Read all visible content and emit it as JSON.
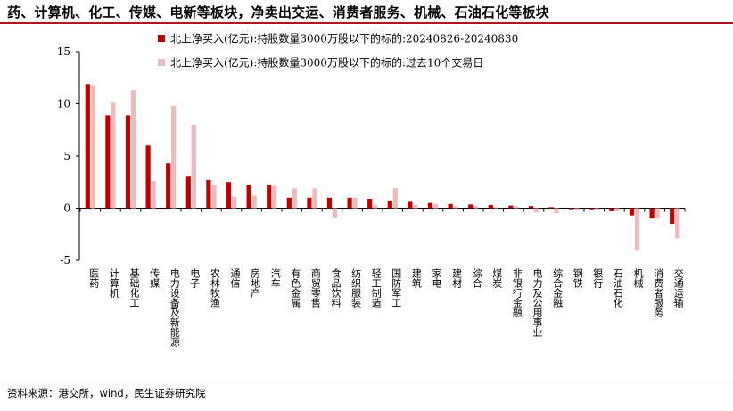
{
  "title": "药、计算机、化工、传媒、电新等板块，净卖出交运、消费者服务、机械、石油石化等板块",
  "source": "资料来源：港交所，wind，民生证券研究院",
  "chart_data": {
    "type": "bar",
    "categories": [
      "医药",
      "计算机",
      "基础化工",
      "传媒",
      "电力设备及新能源",
      "电子",
      "农林牧渔",
      "通信",
      "房地产",
      "汽车",
      "有色金属",
      "商贸零售",
      "食品饮料",
      "纺织服装",
      "轻工制造",
      "国防军工",
      "建筑",
      "家电",
      "建材",
      "综合",
      "煤炭",
      "非银行金融",
      "电力及公用事业",
      "综合金融",
      "钢铁",
      "银行",
      "石油石化",
      "机械",
      "消费者服务",
      "交通运输"
    ],
    "series": [
      {
        "name": "北上净买入(亿元):持股数量3000万股以下的标的:20240826-20240830",
        "color": "#c00000",
        "values": [
          11.9,
          8.9,
          8.9,
          6.0,
          4.3,
          3.1,
          2.7,
          2.5,
          2.2,
          2.2,
          1.0,
          1.0,
          1.0,
          1.0,
          0.9,
          0.7,
          0.6,
          0.5,
          0.4,
          0.35,
          0.3,
          0.25,
          0.2,
          0.1,
          -0.1,
          -0.1,
          -0.3,
          -0.7,
          -1.0,
          -1.5
        ]
      },
      {
        "name": "北上净买入(亿元):持股数量3000万股以下的标的:过去10个交易日",
        "color": "#ecbcbc",
        "values": [
          11.8,
          10.2,
          11.3,
          2.6,
          9.8,
          8.0,
          2.2,
          1.1,
          1.2,
          2.1,
          1.9,
          1.9,
          -0.9,
          1.0,
          0.3,
          1.9,
          0.3,
          0.4,
          0.2,
          0.2,
          0.1,
          0.2,
          -0.4,
          -0.5,
          -0.2,
          -0.2,
          -0.3,
          -4.0,
          -1.0,
          -2.9
        ]
      }
    ],
    "yticks": [
      15,
      10,
      5,
      0,
      -5
    ],
    "ylim": [
      -5,
      15
    ],
    "grid": false,
    "legend_position": "top"
  }
}
